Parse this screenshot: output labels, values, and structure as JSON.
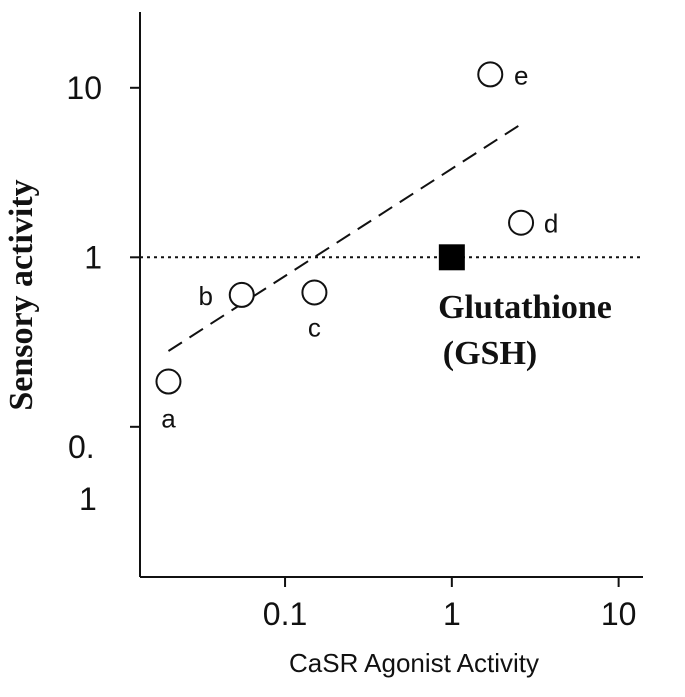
{
  "chart_data": {
    "type": "scatter",
    "title": "",
    "xlabel": "CaSR Agonist Activity",
    "ylabel": "Sensory activity",
    "xscale": "log",
    "yscale": "log",
    "xlim": [
      0.0135,
      14
    ],
    "ylim": [
      0.013,
      28
    ],
    "x_ticks": [
      {
        "value": 0.1,
        "label": "0.1"
      },
      {
        "value": 1,
        "label": "1"
      },
      {
        "value": 10,
        "label": "10"
      }
    ],
    "y_ticks": [
      {
        "value": 1,
        "label": "1"
      },
      {
        "value": 10,
        "label": "10"
      }
    ],
    "y_minor_ticks": [
      0.1
    ],
    "y_tick_label_lower": {
      "value": 0.07,
      "line1": "0.",
      "line2": "1"
    },
    "grid": false,
    "reference_line": {
      "y": 1,
      "style": "dotted"
    },
    "trend_line": {
      "style": "dashed",
      "x": [
        0.02,
        2.6
      ],
      "y": [
        0.28,
        6.1
      ]
    },
    "series": [
      {
        "marker": "open-circle",
        "points": [
          {
            "label": "a",
            "x": 0.02,
            "y": 0.185
          },
          {
            "label": "b",
            "x": 0.055,
            "y": 0.6
          },
          {
            "label": "c",
            "x": 0.15,
            "y": 0.62
          },
          {
            "label": "d",
            "x": 2.6,
            "y": 1.6
          },
          {
            "label": "e",
            "x": 1.7,
            "y": 12
          }
        ]
      },
      {
        "marker": "filled-square",
        "points": [
          {
            "label": "Glutathione (GSH)",
            "x": 1,
            "y": 1
          }
        ]
      }
    ],
    "annotation": {
      "line1": "Glutathione",
      "line2": "(GSH)"
    }
  }
}
